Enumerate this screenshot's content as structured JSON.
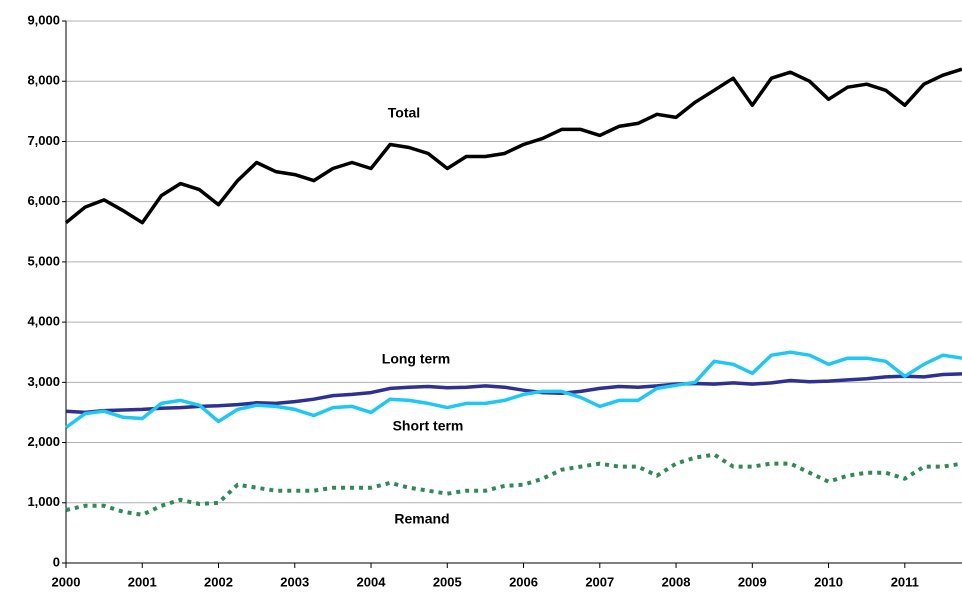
{
  "chart_data": {
    "type": "line",
    "x": [
      2000,
      2000.25,
      2000.5,
      2000.75,
      2001,
      2001.25,
      2001.5,
      2001.75,
      2002,
      2002.25,
      2002.5,
      2002.75,
      2003,
      2003.25,
      2003.5,
      2003.75,
      2004,
      2004.25,
      2004.5,
      2004.75,
      2005,
      2005.25,
      2005.5,
      2005.75,
      2006,
      2006.25,
      2006.5,
      2006.75,
      2007,
      2007.25,
      2007.5,
      2007.75,
      2008,
      2008.25,
      2008.5,
      2008.75,
      2009,
      2009.25,
      2009.5,
      2009.75,
      2010,
      2010.25,
      2010.5,
      2010.75,
      2011,
      2011.25,
      2011.5,
      2011.75
    ],
    "series": [
      {
        "name": "Total",
        "color": "#000000",
        "dashed": false,
        "values": [
          5650,
          5910,
          6030,
          5850,
          5650,
          6100,
          6300,
          6200,
          5950,
          6350,
          6650,
          6500,
          6450,
          6350,
          6550,
          6650,
          6550,
          6950,
          6900,
          6800,
          6550,
          6750,
          6750,
          6800,
          6950,
          7050,
          7200,
          7200,
          7100,
          7250,
          7300,
          7450,
          7400,
          7650,
          7850,
          8050,
          7600,
          8050,
          8150,
          8000,
          7700,
          7900,
          7950,
          7850,
          7600,
          7950,
          8100,
          8200
        ]
      },
      {
        "name": "Long term",
        "color": "#2e3192",
        "dashed": false,
        "values": [
          2520,
          2500,
          2530,
          2540,
          2550,
          2570,
          2580,
          2600,
          2610,
          2630,
          2660,
          2650,
          2680,
          2720,
          2780,
          2800,
          2830,
          2900,
          2920,
          2930,
          2910,
          2920,
          2940,
          2920,
          2870,
          2830,
          2820,
          2850,
          2900,
          2930,
          2920,
          2940,
          2970,
          2980,
          2970,
          2990,
          2970,
          2990,
          3030,
          3010,
          3020,
          3040,
          3060,
          3090,
          3100,
          3090,
          3130,
          3140
        ]
      },
      {
        "name": "Short term",
        "color": "#1ec8f2",
        "dashed": false,
        "values": [
          2250,
          2480,
          2520,
          2420,
          2400,
          2650,
          2700,
          2620,
          2350,
          2550,
          2620,
          2600,
          2550,
          2450,
          2580,
          2600,
          2500,
          2720,
          2700,
          2650,
          2580,
          2650,
          2650,
          2700,
          2800,
          2850,
          2850,
          2750,
          2600,
          2700,
          2700,
          2900,
          2950,
          3000,
          3350,
          3300,
          3150,
          3450,
          3500,
          3450,
          3300,
          3400,
          3400,
          3350,
          3100,
          3300,
          3450,
          3400
        ]
      },
      {
        "name": "Remand",
        "color": "#2e8b57",
        "dashed": true,
        "values": [
          880,
          950,
          950,
          850,
          800,
          950,
          1050,
          980,
          1000,
          1300,
          1250,
          1200,
          1200,
          1200,
          1250,
          1250,
          1250,
          1330,
          1250,
          1200,
          1150,
          1200,
          1200,
          1280,
          1300,
          1400,
          1550,
          1600,
          1650,
          1600,
          1600,
          1450,
          1650,
          1750,
          1800,
          1600,
          1600,
          1650,
          1650,
          1500,
          1350,
          1450,
          1500,
          1500,
          1400,
          1600,
          1600,
          1650
        ]
      }
    ],
    "xlim": [
      2000,
      2011.75
    ],
    "xticks": [
      2000,
      2001,
      2002,
      2003,
      2004,
      2005,
      2006,
      2007,
      2008,
      2009,
      2010,
      2011
    ],
    "ylim": [
      0,
      9000
    ],
    "yticks": [
      0,
      {
        "value": 1000,
        "label": "1,000"
      },
      {
        "value": 2000,
        "label": "2,000"
      },
      {
        "value": 3000,
        "label": "3,000"
      },
      {
        "value": 4000,
        "label": "4,000"
      },
      {
        "value": 5000,
        "label": "5,000"
      },
      {
        "value": 6000,
        "label": "6,000"
      },
      {
        "value": 7000,
        "label": "7,000"
      },
      {
        "value": 8000,
        "label": "8,000"
      },
      {
        "value": 9000,
        "label": "9,000"
      }
    ],
    "grid": true
  }
}
